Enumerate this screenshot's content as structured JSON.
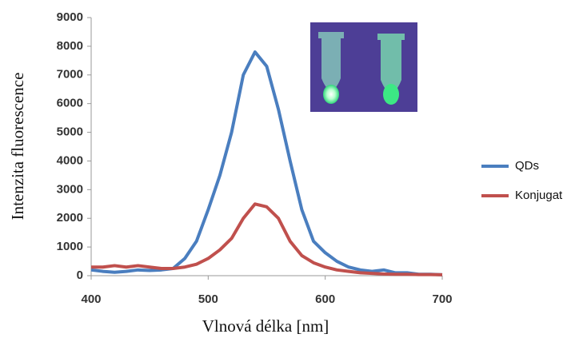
{
  "chart_data": {
    "type": "line",
    "x_label": "Vlnová délka [nm]",
    "y_label": "Intenzita fluorescence",
    "x": [
      400,
      410,
      420,
      430,
      440,
      450,
      460,
      470,
      480,
      490,
      500,
      510,
      520,
      530,
      540,
      550,
      560,
      570,
      580,
      590,
      600,
      610,
      620,
      630,
      640,
      650,
      660,
      670,
      680,
      690,
      700
    ],
    "series": [
      {
        "name": "QDs",
        "color": "#4a7ebf",
        "values": [
          200,
          150,
          120,
          150,
          200,
          180,
          200,
          250,
          600,
          1200,
          2300,
          3500,
          5000,
          7000,
          7800,
          7300,
          5800,
          4000,
          2300,
          1200,
          800,
          500,
          300,
          200,
          150,
          200,
          100,
          100,
          50,
          50,
          30
        ]
      },
      {
        "name": "Konjugat",
        "color": "#c0504d",
        "values": [
          300,
          300,
          350,
          300,
          350,
          300,
          250,
          250,
          300,
          400,
          600,
          900,
          1300,
          2000,
          2500,
          2400,
          2000,
          1200,
          700,
          450,
          300,
          200,
          150,
          100,
          80,
          60,
          50,
          50,
          40,
          40,
          30
        ]
      }
    ],
    "xlim": [
      400,
      700
    ],
    "xticks": [
      400,
      500,
      600,
      700
    ],
    "ylim": [
      0,
      9000
    ],
    "yticks": [
      0,
      1000,
      2000,
      3000,
      4000,
      5000,
      6000,
      7000,
      8000,
      9000
    ],
    "grid": false,
    "legend": "right"
  }
}
